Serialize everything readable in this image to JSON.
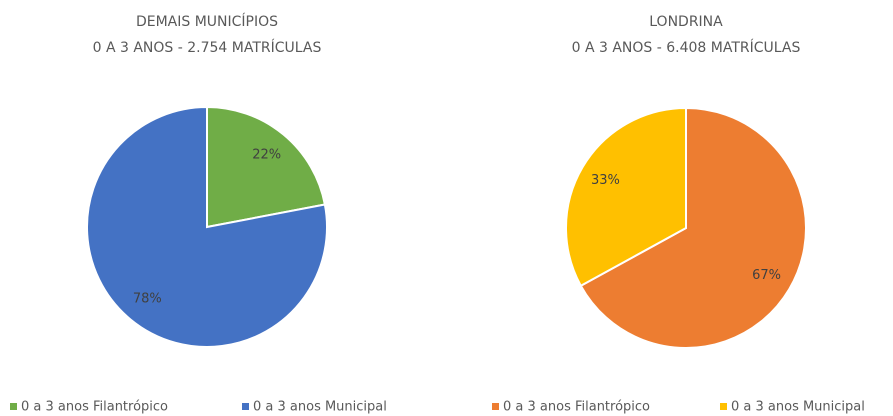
{
  "chart_data": [
    {
      "type": "pie",
      "title": "DEMAIS MUNICÍPIOS",
      "subtitle": "0 A 3 ANOS - 2.754 MATRÍCULAS",
      "categories": [
        "0 a 3 anos Filantrópico",
        "0 a 3 anos Municipal"
      ],
      "values": [
        22,
        78
      ],
      "value_labels": [
        "22%",
        "78%"
      ],
      "colors": [
        "#70ad47",
        "#4472c4"
      ],
      "legend": "bottom"
    },
    {
      "type": "pie",
      "title": "LONDRINA",
      "subtitle": "0 A 3 ANOS - 6.408 MATRÍCULAS",
      "categories": [
        "0 a 3 anos Filantrópico",
        "0 a 3 anos Municipal"
      ],
      "values": [
        67,
        33
      ],
      "value_labels": [
        "67%",
        "33%"
      ],
      "colors": [
        "#ed7d31",
        "#ffc000"
      ],
      "legend": "bottom"
    }
  ]
}
